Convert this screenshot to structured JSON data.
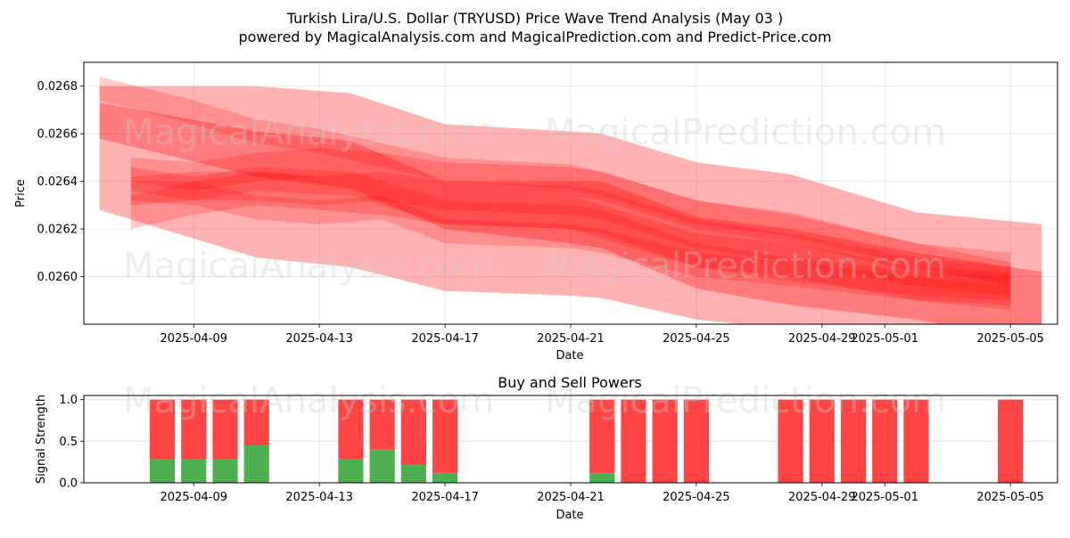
{
  "title": "Turkish Lira/U.S. Dollar (TRYUSD) Price Wave Trend Analysis (May 03 )",
  "subtitle": "powered by MagicalAnalysis.com and MagicalPrediction.com and Predict-Price.com",
  "watermarks": [
    "MagicalAnalysis.com",
    "MagicalPrediction.com"
  ],
  "colors": {
    "band": "#ff0000",
    "buy": "#4caf50",
    "sell": "#ff4444",
    "watermark": "#cccccc"
  },
  "chart_data": [
    {
      "type": "area",
      "xlabel": "Date",
      "ylabel": "Price",
      "x_axis": "date",
      "xlim": [
        "2025-04-05T12:00",
        "2025-05-06T12:00"
      ],
      "ylim": [
        0.0258,
        0.0269
      ],
      "x_ticks": [
        "2025-04-09",
        "2025-04-13",
        "2025-04-17",
        "2025-04-21",
        "2025-04-25",
        "2025-04-29",
        "2025-05-01",
        "2025-05-05"
      ],
      "y_ticks": [
        "0.0260",
        "0.0262",
        "0.0264",
        "0.0266",
        "0.0268"
      ],
      "grid": true,
      "series": [
        {
          "x": [
            "2025-04-06",
            "2025-04-11",
            "2025-04-14",
            "2025-04-17",
            "2025-04-21",
            "2025-04-22",
            "2025-04-25",
            "2025-04-28",
            "2025-05-02",
            "2025-05-06"
          ],
          "lower": [
            0.02658,
            0.02642,
            0.02637,
            0.0262,
            0.02614,
            0.02612,
            0.02595,
            0.02588,
            0.02582,
            0.02572
          ],
          "upper": [
            0.0268,
            0.0268,
            0.02677,
            0.02664,
            0.02661,
            0.0266,
            0.02648,
            0.02643,
            0.02627,
            0.02622
          ]
        },
        {
          "x": [
            "2025-04-06",
            "2025-04-11",
            "2025-04-14",
            "2025-04-17",
            "2025-04-21",
            "2025-04-22",
            "2025-04-25",
            "2025-04-28",
            "2025-05-02",
            "2025-05-06"
          ],
          "lower": [
            0.02628,
            0.02608,
            0.02604,
            0.02594,
            0.02592,
            0.02591,
            0.02582,
            0.02578,
            0.02577,
            0.02572
          ],
          "upper": [
            0.02673,
            0.02661,
            0.02657,
            0.0264,
            0.0264,
            0.0264,
            0.02625,
            0.0262,
            0.0261,
            0.02602
          ]
        },
        {
          "x": [
            "2025-04-07",
            "2025-04-09",
            "2025-04-11",
            "2025-04-13",
            "2025-04-15",
            "2025-04-17",
            "2025-04-21",
            "2025-04-22",
            "2025-04-25",
            "2025-04-28",
            "2025-05-02",
            "2025-05-05"
          ],
          "lower": [
            0.0264,
            0.02636,
            0.0264,
            0.02642,
            0.0264,
            0.02636,
            0.02634,
            0.02632,
            0.0262,
            0.02614,
            0.02602,
            0.02598
          ],
          "upper": [
            0.0265,
            0.02648,
            0.02652,
            0.02654,
            0.02652,
            0.02648,
            0.02646,
            0.02644,
            0.02632,
            0.02626,
            0.02614,
            0.0261
          ]
        },
        {
          "x": [
            "2025-04-07",
            "2025-04-09",
            "2025-04-11",
            "2025-04-13",
            "2025-04-15",
            "2025-04-17",
            "2025-04-21",
            "2025-04-22",
            "2025-04-25",
            "2025-04-28",
            "2025-05-02",
            "2025-05-05"
          ],
          "lower": [
            0.0263,
            0.02632,
            0.02632,
            0.0263,
            0.02632,
            0.02628,
            0.02626,
            0.02624,
            0.02612,
            0.02606,
            0.02596,
            0.02592
          ],
          "upper": [
            0.02642,
            0.02644,
            0.02644,
            0.02642,
            0.02644,
            0.0264,
            0.02638,
            0.02636,
            0.02624,
            0.02618,
            0.02608,
            0.02604
          ]
        },
        {
          "x": [
            "2025-04-07",
            "2025-04-09",
            "2025-04-11",
            "2025-04-13",
            "2025-04-15",
            "2025-04-17",
            "2025-04-21",
            "2025-04-22",
            "2025-04-25",
            "2025-04-28",
            "2025-05-02",
            "2025-05-05"
          ],
          "lower": [
            0.0262,
            0.02626,
            0.0263,
            0.02628,
            0.02626,
            0.02622,
            0.0262,
            0.02616,
            0.02604,
            0.026,
            0.0259,
            0.02588
          ],
          "upper": [
            0.02634,
            0.0264,
            0.02644,
            0.02642,
            0.0264,
            0.02636,
            0.02634,
            0.0263,
            0.02618,
            0.02614,
            0.02604,
            0.02602
          ]
        },
        {
          "x": [
            "2025-04-06",
            "2025-04-09",
            "2025-04-11",
            "2025-04-13",
            "2025-04-15",
            "2025-04-17",
            "2025-04-21",
            "2025-04-22",
            "2025-04-25",
            "2025-04-28",
            "2025-05-02",
            "2025-05-05"
          ],
          "lower": [
            0.02674,
            0.02664,
            0.02656,
            0.02652,
            0.02646,
            0.0264,
            0.02637,
            0.02634,
            0.02622,
            0.02617,
            0.02604,
            0.02596
          ],
          "upper": [
            0.02684,
            0.02674,
            0.02666,
            0.02662,
            0.02656,
            0.0265,
            0.02647,
            0.02644,
            0.02632,
            0.02627,
            0.02614,
            0.02606
          ]
        },
        {
          "x": [
            "2025-04-07",
            "2025-04-09",
            "2025-04-11",
            "2025-04-13",
            "2025-04-15",
            "2025-04-17",
            "2025-04-21",
            "2025-04-22",
            "2025-04-25",
            "2025-04-28",
            "2025-05-02",
            "2025-05-05"
          ],
          "lower": [
            0.02632,
            0.0263,
            0.02624,
            0.02622,
            0.02624,
            0.02614,
            0.02612,
            0.0261,
            0.026,
            0.02596,
            0.0259,
            0.02586
          ],
          "upper": [
            0.0264,
            0.0264,
            0.02634,
            0.02632,
            0.02634,
            0.02624,
            0.02622,
            0.0262,
            0.0261,
            0.02606,
            0.026,
            0.02596
          ]
        },
        {
          "x": [
            "2025-04-07",
            "2025-04-09",
            "2025-04-11",
            "2025-04-14",
            "2025-04-17",
            "2025-04-21",
            "2025-04-22",
            "2025-04-25",
            "2025-04-28",
            "2025-05-02",
            "2025-05-05"
          ],
          "lower": [
            0.02636,
            0.02632,
            0.02636,
            0.02634,
            0.02622,
            0.0262,
            0.02618,
            0.02604,
            0.02598,
            0.02592,
            0.0259
          ],
          "upper": [
            0.02646,
            0.02642,
            0.02646,
            0.02644,
            0.02632,
            0.0263,
            0.02628,
            0.02614,
            0.02608,
            0.02602,
            0.026
          ]
        }
      ]
    },
    {
      "type": "bar",
      "title": "Buy and Sell Powers",
      "xlabel": "Date",
      "ylabel": "Signal Strength",
      "x_axis": "date",
      "xlim": [
        "2025-04-05T12:00",
        "2025-05-06T12:00"
      ],
      "ylim": [
        0,
        1.05
      ],
      "x_ticks": [
        "2025-04-09",
        "2025-04-13",
        "2025-04-17",
        "2025-04-21",
        "2025-04-25",
        "2025-04-29",
        "2025-05-01",
        "2025-05-05"
      ],
      "y_ticks": [
        "0.0",
        "0.5",
        "1.0"
      ],
      "grid": true,
      "categories": [
        "2025-04-08",
        "2025-04-09",
        "2025-04-10",
        "2025-04-11",
        "2025-04-14",
        "2025-04-15",
        "2025-04-16",
        "2025-04-17",
        "2025-04-22",
        "2025-04-23",
        "2025-04-24",
        "2025-04-25",
        "2025-04-28",
        "2025-04-29",
        "2025-04-30",
        "2025-05-01",
        "2025-05-02",
        "2025-05-05"
      ],
      "series": [
        {
          "name": "Buy",
          "values": [
            0.28,
            0.28,
            0.28,
            0.45,
            0.28,
            0.4,
            0.22,
            0.12,
            0.12,
            0,
            0,
            0,
            0,
            0,
            0,
            0,
            0,
            0
          ]
        },
        {
          "name": "Sell",
          "values": [
            0.72,
            0.72,
            0.72,
            0.55,
            0.72,
            0.6,
            0.78,
            0.88,
            0.88,
            1,
            1,
            1,
            1,
            1,
            1,
            1,
            1,
            1
          ]
        }
      ]
    }
  ]
}
